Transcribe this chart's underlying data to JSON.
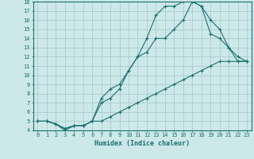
{
  "xlabel": "Humidex (Indice chaleur)",
  "bg_color": "#cce8e8",
  "grid_color": "#aacccc",
  "line_color": "#1a7070",
  "xlim": [
    -0.5,
    23.5
  ],
  "ylim": [
    4,
    18
  ],
  "xticks": [
    0,
    1,
    2,
    3,
    4,
    5,
    6,
    7,
    8,
    9,
    10,
    11,
    12,
    13,
    14,
    15,
    16,
    17,
    18,
    19,
    20,
    21,
    22,
    23
  ],
  "yticks": [
    4,
    5,
    6,
    7,
    8,
    9,
    10,
    11,
    12,
    13,
    14,
    15,
    16,
    17,
    18
  ],
  "line1_x": [
    0,
    1,
    2,
    3,
    4,
    5,
    6,
    7,
    8,
    9,
    10,
    11,
    12,
    13,
    14,
    15,
    16,
    17,
    18,
    19,
    20,
    21,
    22,
    23
  ],
  "line1_y": [
    5.0,
    5.0,
    4.7,
    4.0,
    4.5,
    4.5,
    5.0,
    5.0,
    5.5,
    6.0,
    6.5,
    7.0,
    7.5,
    8.0,
    8.5,
    9.0,
    9.5,
    10.0,
    10.5,
    11.0,
    11.5,
    11.5,
    11.5,
    11.5
  ],
  "line2_x": [
    0,
    1,
    2,
    3,
    4,
    5,
    6,
    7,
    8,
    9,
    10,
    11,
    12,
    13,
    14,
    15,
    16,
    17,
    18,
    19,
    20,
    21,
    22,
    23
  ],
  "line2_y": [
    5.0,
    5.0,
    4.7,
    4.2,
    4.5,
    4.5,
    5.0,
    7.5,
    8.5,
    9.0,
    10.5,
    12.0,
    12.5,
    14.0,
    14.0,
    15.0,
    16.0,
    18.0,
    17.5,
    14.5,
    14.0,
    13.0,
    12.0,
    11.5
  ],
  "line3_x": [
    0,
    1,
    2,
    3,
    4,
    5,
    6,
    7,
    8,
    9,
    10,
    11,
    12,
    13,
    14,
    15,
    16,
    17,
    18,
    19,
    20,
    21,
    22,
    23
  ],
  "line3_y": [
    5.0,
    5.0,
    4.7,
    4.2,
    4.5,
    4.5,
    5.0,
    7.0,
    7.5,
    8.5,
    10.5,
    12.0,
    14.0,
    16.5,
    17.5,
    17.5,
    18.0,
    18.0,
    17.5,
    16.0,
    15.0,
    13.0,
    11.5,
    11.5
  ]
}
